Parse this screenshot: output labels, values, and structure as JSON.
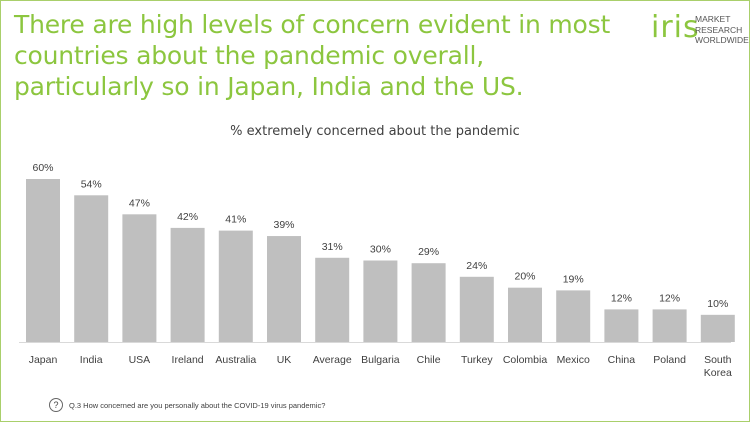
{
  "slide": {
    "title": "There are high levels of concern evident in most countries about the pandemic overall, particularly so in Japan, India and the US.",
    "logo": {
      "mark": "iris",
      "lines": [
        "MARKET",
        "RESEARCH",
        "WORLDWIDE"
      ]
    },
    "footnote": "Q.3 How concerned are you personally about the COVID-19 virus pandemic?",
    "help_icon": "question-circle-icon"
  },
  "colors": {
    "title": "#8cc63f",
    "bar": "#bfbfbf",
    "border": "#a9cf6b"
  },
  "chart_data": {
    "type": "bar",
    "title": "% extremely concerned about the pandemic",
    "categories": [
      "Japan",
      "India",
      "USA",
      "Ireland",
      "Australia",
      "UK",
      "Average",
      "Bulgaria",
      "Chile",
      "Turkey",
      "Colombia",
      "Mexico",
      "China",
      "Poland",
      "South Korea"
    ],
    "values": [
      60,
      54,
      47,
      42,
      41,
      39,
      31,
      30,
      29,
      24,
      20,
      19,
      12,
      12,
      10
    ],
    "data_labels": [
      "60%",
      "54%",
      "47%",
      "42%",
      "41%",
      "39%",
      "31%",
      "30%",
      "29%",
      "24%",
      "20%",
      "19%",
      "12%",
      "12%",
      "10%"
    ],
    "ylim": [
      0,
      60
    ],
    "grid": false,
    "legend": "none"
  }
}
